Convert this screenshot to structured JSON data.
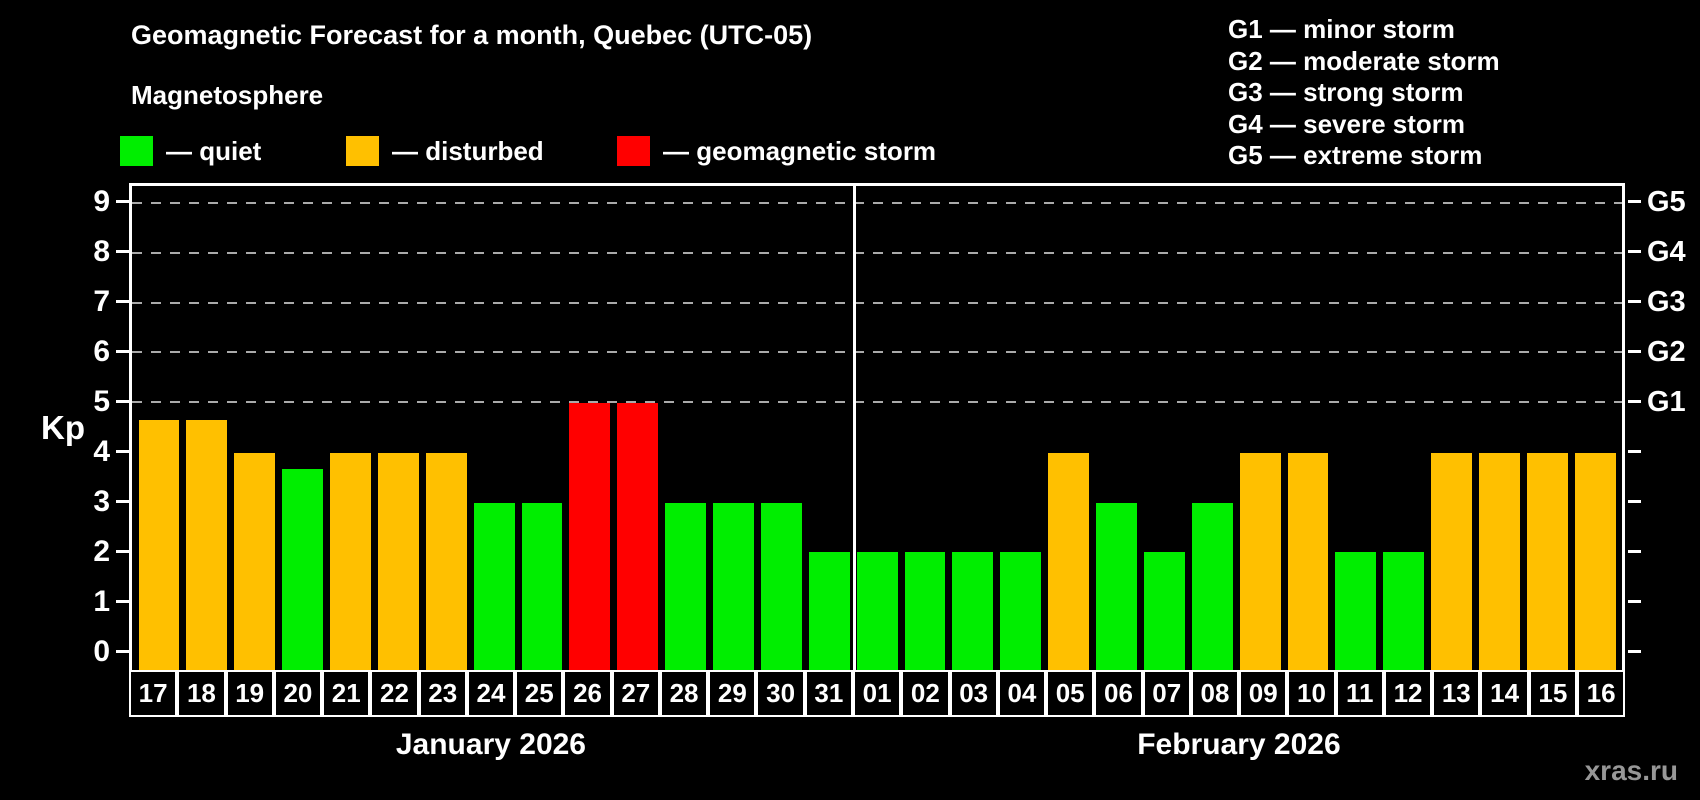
{
  "header": {
    "title": "Geomagnetic Forecast for a month, Quebec (UTC-05)",
    "subtitle": "Magnetosphere"
  },
  "legend": {
    "items": [
      {
        "label": "— quiet",
        "state": "quiet"
      },
      {
        "label": "— disturbed",
        "state": "disturbed"
      },
      {
        "label": "— geomagnetic storm",
        "state": "storm"
      }
    ]
  },
  "g_scale_legend": [
    "G1 — minor storm",
    "G2 — moderate storm",
    "G3 — strong storm",
    "G4 — severe storm",
    "G5 — extreme storm"
  ],
  "colors": {
    "quiet": "#00ee00",
    "disturbed": "#ffc000",
    "storm": "#ff0000",
    "axis": "#ffffff",
    "grid": "#aaaaaa",
    "watermark": "#979797"
  },
  "watermark": "xras.ru",
  "chart_data": {
    "type": "bar",
    "title": "Geomagnetic Forecast for a month, Quebec (UTC-05)",
    "ylabel": "Kp",
    "ylim": [
      -0.37,
      9.37
    ],
    "y_ticks": [
      0,
      1,
      2,
      3,
      4,
      5,
      6,
      7,
      8,
      9
    ],
    "gridlines": [
      5,
      6,
      7,
      8,
      9
    ],
    "right_labels": {
      "5": "G1",
      "6": "G2",
      "7": "G3",
      "8": "G4",
      "9": "G5"
    },
    "legend_note": "grid on at Kp 5-9 only, dashed; bars colored by state",
    "months": [
      {
        "label": "January 2026",
        "count": 15
      },
      {
        "label": "February 2026",
        "count": 16
      }
    ],
    "bars": [
      {
        "day": "17",
        "kp": 4.67,
        "state": "disturbed"
      },
      {
        "day": "18",
        "kp": 4.67,
        "state": "disturbed"
      },
      {
        "day": "19",
        "kp": 4,
        "state": "disturbed"
      },
      {
        "day": "20",
        "kp": 3.67,
        "state": "quiet"
      },
      {
        "day": "21",
        "kp": 4,
        "state": "disturbed"
      },
      {
        "day": "22",
        "kp": 4,
        "state": "disturbed"
      },
      {
        "day": "23",
        "kp": 4,
        "state": "disturbed"
      },
      {
        "day": "24",
        "kp": 3,
        "state": "quiet"
      },
      {
        "day": "25",
        "kp": 3,
        "state": "quiet"
      },
      {
        "day": "26",
        "kp": 5,
        "state": "storm"
      },
      {
        "day": "27",
        "kp": 5,
        "state": "storm"
      },
      {
        "day": "28",
        "kp": 3,
        "state": "quiet"
      },
      {
        "day": "29",
        "kp": 3,
        "state": "quiet"
      },
      {
        "day": "30",
        "kp": 3,
        "state": "quiet"
      },
      {
        "day": "31",
        "kp": 2,
        "state": "quiet"
      },
      {
        "day": "01",
        "kp": 2,
        "state": "quiet"
      },
      {
        "day": "02",
        "kp": 2,
        "state": "quiet"
      },
      {
        "day": "03",
        "kp": 2,
        "state": "quiet"
      },
      {
        "day": "04",
        "kp": 2,
        "state": "quiet"
      },
      {
        "day": "05",
        "kp": 4,
        "state": "disturbed"
      },
      {
        "day": "06",
        "kp": 3,
        "state": "quiet"
      },
      {
        "day": "07",
        "kp": 2,
        "state": "quiet"
      },
      {
        "day": "08",
        "kp": 3,
        "state": "quiet"
      },
      {
        "day": "09",
        "kp": 4,
        "state": "disturbed"
      },
      {
        "day": "10",
        "kp": 4,
        "state": "disturbed"
      },
      {
        "day": "11",
        "kp": 2,
        "state": "quiet"
      },
      {
        "day": "12",
        "kp": 2,
        "state": "quiet"
      },
      {
        "day": "13",
        "kp": 4,
        "state": "disturbed"
      },
      {
        "day": "14",
        "kp": 4,
        "state": "disturbed"
      },
      {
        "day": "15",
        "kp": 4,
        "state": "disturbed"
      },
      {
        "day": "16",
        "kp": 4,
        "state": "disturbed"
      }
    ]
  }
}
